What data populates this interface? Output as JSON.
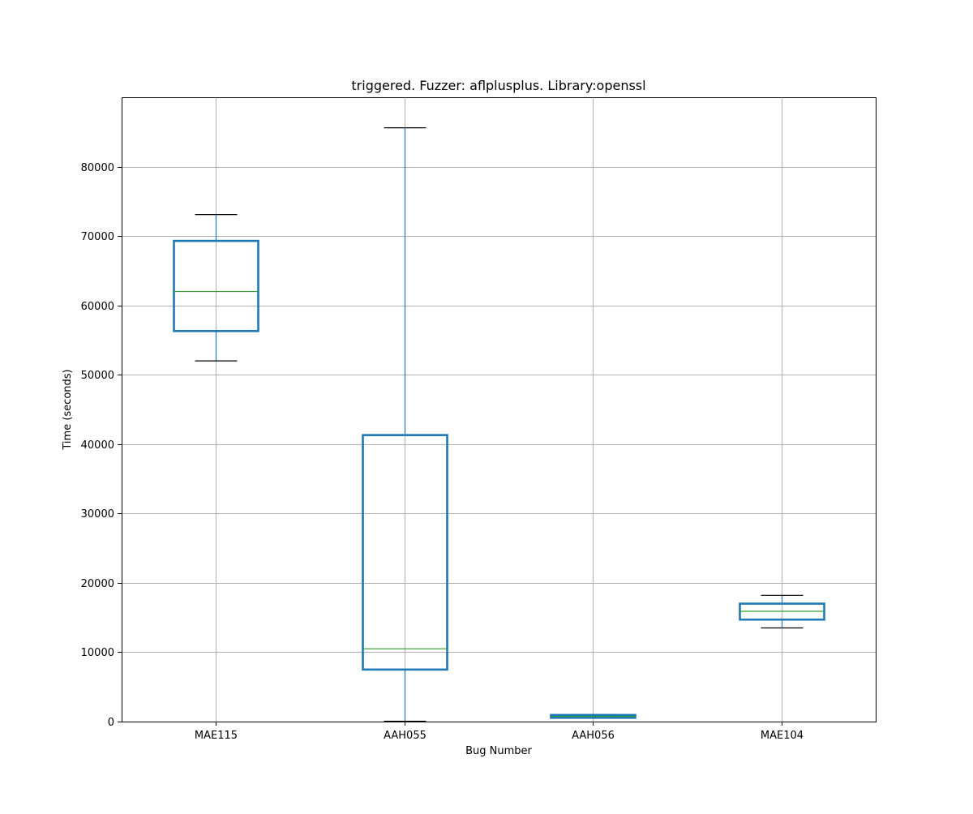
{
  "chart_data": {
    "type": "box",
    "title": "triggered. Fuzzer: aflplusplus. Library:openssl",
    "xlabel": "Bug Number",
    "ylabel": "Time (seconds)",
    "ylim": [
      0,
      90000
    ],
    "yticks": [
      0,
      10000,
      20000,
      30000,
      40000,
      50000,
      60000,
      70000,
      80000
    ],
    "grid": true,
    "categories": [
      "MAE115",
      "AAH055",
      "AAH056",
      "MAE104"
    ],
    "boxes": [
      {
        "category": "MAE115",
        "whisker_low": 52000,
        "q1": 56300,
        "median": 62000,
        "q3": 69300,
        "whisker_high": 73100
      },
      {
        "category": "AAH055",
        "whisker_low": 50,
        "q1": 7500,
        "median": 10500,
        "q3": 41300,
        "whisker_high": 85600
      },
      {
        "category": "AAH056",
        "whisker_low": 500,
        "q1": 550,
        "median": 750,
        "q3": 950,
        "whisker_high": 1000
      },
      {
        "category": "MAE104",
        "whisker_low": 13500,
        "q1": 14700,
        "median": 15900,
        "q3": 17000,
        "whisker_high": 18200
      }
    ],
    "colors": {
      "box": "#1f77b4",
      "median": "#2ca02c",
      "cap": "#000000",
      "grid": "#b0b0b0"
    }
  }
}
